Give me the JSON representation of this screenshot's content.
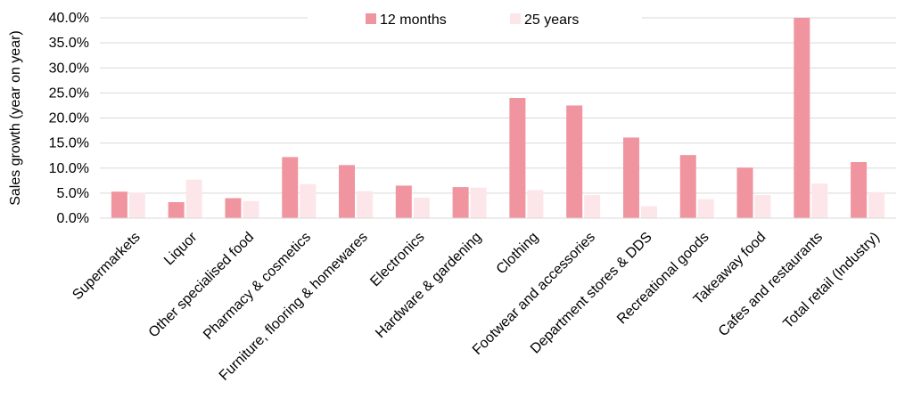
{
  "chart_data": {
    "type": "bar",
    "title": "",
    "xlabel": "",
    "ylabel": "Sales growth (year on year)",
    "ylim": [
      0,
      40
    ],
    "ytick_step": 5,
    "ytick_format": "percent_1dp",
    "grid": "horizontal",
    "legend_position": "top-center",
    "categories": [
      "Supermarkets",
      "Liquor",
      "Other specialised food",
      "Pharmacy & cosmetics",
      "Furniture, flooring & homewares",
      "Electronics",
      "Hardware & gardening",
      "Clothing",
      "Footwear and accessories",
      "Department stores & DDS",
      "Recreational goods",
      "Takeaway food",
      "Cafes and restaurants",
      "Total retail (Industry)"
    ],
    "series": [
      {
        "name": "12 months",
        "color": "#f0959f",
        "values": [
          5.3,
          3.2,
          4.0,
          12.2,
          10.6,
          6.5,
          6.2,
          24.0,
          22.5,
          16.1,
          12.6,
          10.1,
          40.0,
          11.2
        ]
      },
      {
        "name": "25 years",
        "color": "#fce6e9",
        "values": [
          5.1,
          7.7,
          3.4,
          6.8,
          5.4,
          4.1,
          6.1,
          5.6,
          4.6,
          2.4,
          3.8,
          4.6,
          6.9,
          5.2
        ]
      }
    ]
  }
}
